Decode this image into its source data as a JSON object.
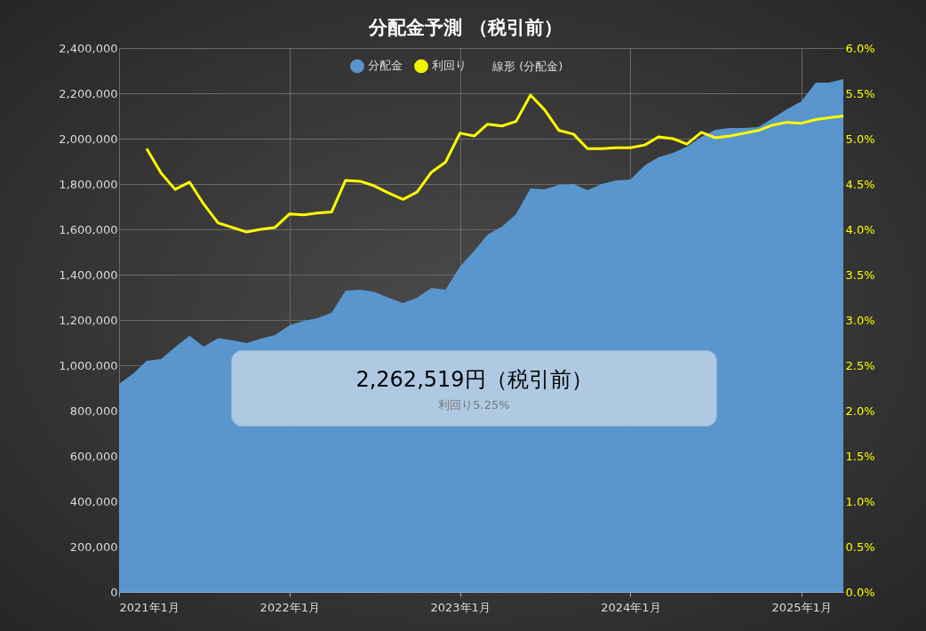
{
  "chart_data": {
    "type": "area",
    "title": "分配金予測 （税引前）",
    "x": [
      "2021-01",
      "2021-02",
      "2021-03",
      "2021-04",
      "2021-05",
      "2021-06",
      "2021-07",
      "2021-08",
      "2021-09",
      "2021-10",
      "2021-11",
      "2021-12",
      "2022-01",
      "2022-02",
      "2022-03",
      "2022-04",
      "2022-05",
      "2022-06",
      "2022-07",
      "2022-08",
      "2022-09",
      "2022-10",
      "2022-11",
      "2022-12",
      "2023-01",
      "2023-02",
      "2023-03",
      "2023-04",
      "2023-05",
      "2023-06",
      "2023-07",
      "2023-08",
      "2023-09",
      "2023-10",
      "2023-11",
      "2023-12",
      "2024-01",
      "2024-02",
      "2024-03",
      "2024-04",
      "2024-05",
      "2024-06",
      "2024-07",
      "2024-08",
      "2024-09",
      "2024-10",
      "2024-11",
      "2024-12",
      "2025-01",
      "2025-02",
      "2025-03",
      "2025-04"
    ],
    "series": [
      {
        "name": "分配金",
        "type": "area",
        "color": "#5b9bd5",
        "values": [
          918000,
          965000,
          1020000,
          1027000,
          1080000,
          1130000,
          1082000,
          1120000,
          1110000,
          1098000,
          1118000,
          1133000,
          1176000,
          1196000,
          1208000,
          1231000,
          1329000,
          1333000,
          1325000,
          1298000,
          1275000,
          1298000,
          1341000,
          1333000,
          1435000,
          1506000,
          1576000,
          1612000,
          1667000,
          1780000,
          1776000,
          1796000,
          1800000,
          1773000,
          1800000,
          1816000,
          1820000,
          1882000,
          1918000,
          1937000,
          1965000,
          2008000,
          2039000,
          2047000,
          2047000,
          2051000,
          2090000,
          2129000,
          2165000,
          2247000,
          2247000,
          2262519
        ]
      },
      {
        "name": "利回り",
        "type": "line",
        "axis": "y2",
        "color": "#ffff00",
        "values": [
          null,
          null,
          4.89,
          4.62,
          4.44,
          4.52,
          4.28,
          4.07,
          4.02,
          3.97,
          4.0,
          4.02,
          4.17,
          4.16,
          4.18,
          4.19,
          4.54,
          4.53,
          4.48,
          4.4,
          4.33,
          4.41,
          4.63,
          4.74,
          5.06,
          5.03,
          5.16,
          5.14,
          5.19,
          5.48,
          5.32,
          5.09,
          5.05,
          4.89,
          4.89,
          4.9,
          4.9,
          4.93,
          5.02,
          5.0,
          4.94,
          5.07,
          5.01,
          5.03,
          5.06,
          5.09,
          5.15,
          5.18,
          5.17,
          5.21,
          5.23,
          5.25
        ]
      }
    ],
    "xlim": [
      "2021-01",
      "2025-04"
    ],
    "xticks": [
      {
        "value": "2021-01",
        "label": "2021年1月"
      },
      {
        "value": "2022-01",
        "label": "2022年1月"
      },
      {
        "value": "2023-01",
        "label": "2023年1月"
      },
      {
        "value": "2024-01",
        "label": "2024年1月"
      },
      {
        "value": "2025-01",
        "label": "2025年1月"
      }
    ],
    "ylim": [
      0,
      2400000
    ],
    "yticks": [
      {
        "value": 0,
        "label": "0"
      },
      {
        "value": 200000,
        "label": "200,000"
      },
      {
        "value": 400000,
        "label": "400,000"
      },
      {
        "value": 600000,
        "label": "600,000"
      },
      {
        "value": 800000,
        "label": "800,000"
      },
      {
        "value": 1000000,
        "label": "1,000,000"
      },
      {
        "value": 1200000,
        "label": "1,200,000"
      },
      {
        "value": 1400000,
        "label": "1,400,000"
      },
      {
        "value": 1600000,
        "label": "1,600,000"
      },
      {
        "value": 1800000,
        "label": "1,800,000"
      },
      {
        "value": 2000000,
        "label": "2,000,000"
      },
      {
        "value": 2200000,
        "label": "2,200,000"
      },
      {
        "value": 2400000,
        "label": "2,400,000"
      }
    ],
    "y2lim": [
      0,
      6
    ],
    "y2ticks": [
      {
        "value": 0,
        "label": "0.0%"
      },
      {
        "value": 0.5,
        "label": "0.5%"
      },
      {
        "value": 1,
        "label": "1.0%"
      },
      {
        "value": 1.5,
        "label": "1.5%"
      },
      {
        "value": 2,
        "label": "2.0%"
      },
      {
        "value": 2.5,
        "label": "2.5%"
      },
      {
        "value": 3,
        "label": "3.0%"
      },
      {
        "value": 3.5,
        "label": "3.5%"
      },
      {
        "value": 4,
        "label": "4.0%"
      },
      {
        "value": 4.5,
        "label": "4.5%"
      },
      {
        "value": 5,
        "label": "5.0%"
      },
      {
        "value": 5.5,
        "label": "5.5%"
      },
      {
        "value": 6,
        "label": "6.0%"
      }
    ],
    "grid": true,
    "legend": "top",
    "annotations": [
      "2,262,519円（税引前）",
      "利回り5.25%",
      "線形 (分配金)"
    ]
  }
}
